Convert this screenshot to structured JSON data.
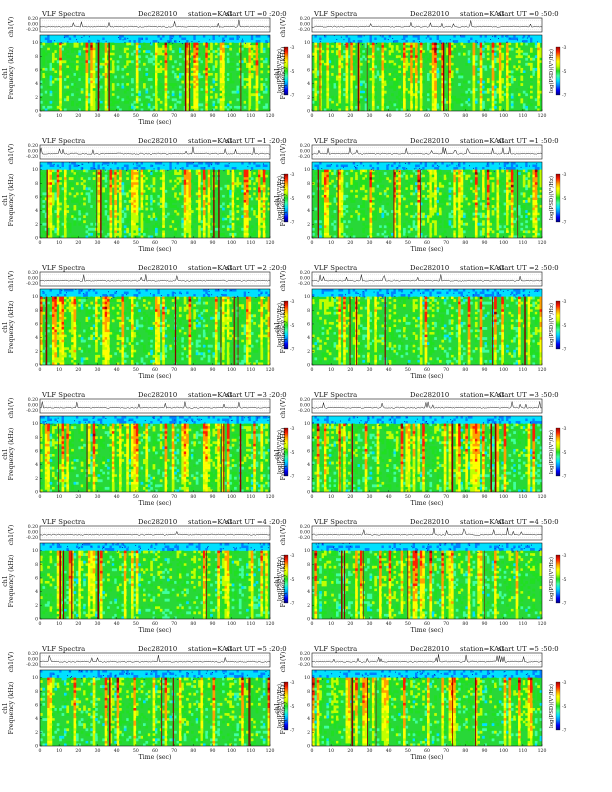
{
  "chart_data": [
    {
      "type": "heatmap",
      "header": {
        "title": "VLF Spectra",
        "date": "Dec282010",
        "station": "station=KAG",
        "start": "start  UT =0 :20:0"
      },
      "amp_axis": {
        "label": "ch1(V)",
        "ticks": [
          "0.20",
          "0.00",
          "-0.20"
        ]
      },
      "spec_axis": {
        "label": "Frequency (kHz)",
        "ticks": [
          "0",
          "2",
          "4",
          "6",
          "8",
          "10"
        ]
      },
      "x_axis": {
        "label": "Time (sec)",
        "ticks": [
          "0",
          "10",
          "20",
          "30",
          "40",
          "50",
          "60",
          "70",
          "80",
          "90",
          "100",
          "110",
          "120"
        ]
      },
      "colorbar": {
        "label": "log(PSD)(V²/Hz)",
        "ticks": [
          "-3",
          "-5",
          "-7"
        ]
      }
    },
    {
      "type": "heatmap",
      "header": {
        "title": "VLF Spectra",
        "date": "Dec282010",
        "station": "station=KAG",
        "start": "start  UT =0 :50:0"
      },
      "amp_axis": {
        "label": "ch1(V)",
        "ticks": [
          "0.20",
          "0.00",
          "-0.20"
        ]
      },
      "spec_axis": {
        "label": "Frequency (kHz)",
        "ticks": [
          "0",
          "2",
          "4",
          "6",
          "8",
          "10"
        ]
      },
      "x_axis": {
        "label": "",
        "ticks": [
          "0",
          "10",
          "20",
          "30",
          "40",
          "50",
          "60",
          "70",
          "80",
          "90",
          "100",
          "110",
          "120"
        ]
      },
      "colorbar": {
        "label": "log(PSD)(V²/Hz)",
        "ticks": [
          "-3",
          "-5",
          "-7"
        ]
      }
    },
    {
      "type": "heatmap",
      "header": {
        "title": "VLF Spectra",
        "date": "Dec282010",
        "station": "station=KAG",
        "start": "start  UT =1 :20:0"
      },
      "amp_axis": {
        "label": "ch1(V)",
        "ticks": [
          "0.20",
          "0.00",
          "-0.20"
        ]
      },
      "spec_axis": {
        "label": "Frequency (kHz)",
        "ticks": [
          "0",
          "2",
          "4",
          "6",
          "8",
          "10"
        ]
      },
      "x_axis": {
        "label": "Time (sec)",
        "ticks": [
          "0",
          "10",
          "20",
          "30",
          "40",
          "50",
          "60",
          "70",
          "80",
          "90",
          "100",
          "110",
          "120"
        ]
      },
      "colorbar": {
        "label": "log(PSD)(V²/Hz)",
        "ticks": [
          "-3",
          "-5",
          "-7"
        ]
      }
    },
    {
      "type": "heatmap",
      "header": {
        "title": "VLF Spectra",
        "date": "Dec282010",
        "station": "station=KAG",
        "start": "start  UT =1 :50:0"
      },
      "amp_axis": {
        "label": "ch1(V)",
        "ticks": [
          "0.20",
          "0.00",
          "-0.20"
        ]
      },
      "spec_axis": {
        "label": "Frequency (kHz)",
        "ticks": [
          "0",
          "2",
          "4",
          "6",
          "8",
          "10"
        ]
      },
      "x_axis": {
        "label": "Time (sec)",
        "ticks": [
          "0",
          "10",
          "20",
          "30",
          "40",
          "50",
          "60",
          "70",
          "80",
          "90",
          "100",
          "110",
          "120"
        ]
      },
      "colorbar": {
        "label": "log(PSD)(V²/Hz)",
        "ticks": [
          "-3",
          "-5",
          "-7"
        ]
      }
    },
    {
      "type": "heatmap",
      "header": {
        "title": "VLF Spectra",
        "date": "Dec282010",
        "station": "station=KAG",
        "start": "start  UT =2 :20:0"
      },
      "amp_axis": {
        "label": "ch1(V)",
        "ticks": [
          "0.20",
          "0.00",
          "-0.20"
        ]
      },
      "spec_axis": {
        "label": "Frequency (kHz)",
        "ticks": [
          "0",
          "2",
          "4",
          "6",
          "8",
          "10"
        ]
      },
      "x_axis": {
        "label": "Time (sec)",
        "ticks": [
          "0",
          "10",
          "20",
          "30",
          "40",
          "50",
          "60",
          "70",
          "80",
          "90",
          "100",
          "110",
          "120"
        ]
      },
      "colorbar": {
        "label": "log(PSD)(V²/Hz)",
        "ticks": [
          "-3",
          "-5",
          "-7"
        ]
      }
    },
    {
      "type": "heatmap",
      "header": {
        "title": "VLF Spectra",
        "date": "Dec282010",
        "station": "station=KAG",
        "start": "start  UT =2 :50:0"
      },
      "amp_axis": {
        "label": "ch1(V)",
        "ticks": [
          "0.20",
          "0.00",
          "-0.20"
        ]
      },
      "spec_axis": {
        "label": "Frequency (kHz)",
        "ticks": [
          "0",
          "2",
          "4",
          "6",
          "8",
          "10"
        ]
      },
      "x_axis": {
        "label": "Time (sec)",
        "ticks": [
          "0",
          "10",
          "20",
          "30",
          "40",
          "50",
          "60",
          "70",
          "80",
          "90",
          "100",
          "110",
          "120"
        ]
      },
      "colorbar": {
        "label": "log(PSD)(V²/Hz)",
        "ticks": [
          "-3",
          "-5",
          "-7"
        ]
      }
    },
    {
      "type": "heatmap",
      "header": {
        "title": "VLF Spectra",
        "date": "Dec282010",
        "station": "station=KAG",
        "start": "start  UT =3 :20:0"
      },
      "amp_axis": {
        "label": "ch1(V)",
        "ticks": [
          "0.20",
          "0.00",
          "-0.20"
        ]
      },
      "spec_axis": {
        "label": "Frequency (kHz)",
        "ticks": [
          "0",
          "2",
          "4",
          "6",
          "8",
          "10"
        ]
      },
      "x_axis": {
        "label": "Time (sec)",
        "ticks": [
          "0",
          "10",
          "20",
          "30",
          "40",
          "50",
          "60",
          "70",
          "80",
          "90",
          "100",
          "110",
          "120"
        ]
      },
      "colorbar": {
        "label": "log(PSD)(V²/Hz)",
        "ticks": [
          "-3",
          "-5",
          "-7"
        ]
      }
    },
    {
      "type": "heatmap",
      "header": {
        "title": "VLF Spectra",
        "date": "Dec282010",
        "station": "station=KAG",
        "start": "start  UT =3 :50:0"
      },
      "amp_axis": {
        "label": "ch1(V)",
        "ticks": [
          "0.20",
          "0.00",
          "-0.20"
        ]
      },
      "spec_axis": {
        "label": "Frequency (kHz)",
        "ticks": [
          "0",
          "2",
          "4",
          "6",
          "8",
          "10"
        ]
      },
      "x_axis": {
        "label": "Time (sec)",
        "ticks": [
          "0",
          "10",
          "20",
          "30",
          "40",
          "50",
          "60",
          "70",
          "80",
          "90",
          "100",
          "110",
          "120"
        ]
      },
      "colorbar": {
        "label": "log(PSD)(V²/Hz)",
        "ticks": [
          "-3",
          "-5",
          "-7"
        ]
      }
    },
    {
      "type": "heatmap",
      "header": {
        "title": "VLF Spectra",
        "date": "Dec282010",
        "station": "station=KAG",
        "start": "start  UT =4 :20:0"
      },
      "amp_axis": {
        "label": "ch1(V)",
        "ticks": [
          "0.20",
          "0.00",
          "-0.20"
        ]
      },
      "spec_axis": {
        "label": "Frequency (kHz)",
        "ticks": [
          "0",
          "2",
          "4",
          "6",
          "8",
          "10"
        ]
      },
      "x_axis": {
        "label": "Time (sec)",
        "ticks": [
          "0",
          "10",
          "20",
          "30",
          "40",
          "50",
          "60",
          "70",
          "80",
          "90",
          "100",
          "110",
          "120"
        ]
      },
      "colorbar": {
        "label": "log(PSD)(V²/Hz)",
        "ticks": [
          "-3",
          "-5",
          "-7"
        ]
      }
    },
    {
      "type": "heatmap",
      "header": {
        "title": "VLF Spectra",
        "date": "Dec282010",
        "station": "station=KAG",
        "start": "start  UT =4 :50:0"
      },
      "amp_axis": {
        "label": "ch1(V)",
        "ticks": [
          "0.20",
          "0.00",
          "-0.20"
        ]
      },
      "spec_axis": {
        "label": "Frequency (kHz)",
        "ticks": [
          "0",
          "2",
          "4",
          "6",
          "8",
          "10"
        ]
      },
      "x_axis": {
        "label": "Time (sec)",
        "ticks": [
          "0",
          "10",
          "20",
          "30",
          "40",
          "50",
          "60",
          "70",
          "80",
          "90",
          "100",
          "110",
          "120"
        ]
      },
      "colorbar": {
        "label": "log(PSD)(V²/Hz)",
        "ticks": [
          "-3",
          "-5",
          "-7"
        ]
      }
    },
    {
      "type": "heatmap",
      "header": {
        "title": "VLF Spectra",
        "date": "Dec282010",
        "station": "station=KAG",
        "start": "start  UT =5 :20:0"
      },
      "amp_axis": {
        "label": "ch1(V)",
        "ticks": [
          "0.20",
          "0.00",
          "-0.20"
        ]
      },
      "spec_axis": {
        "label": "Frequency (kHz)",
        "ticks": [
          "0",
          "2",
          "4",
          "6",
          "8",
          "10"
        ]
      },
      "x_axis": {
        "label": "Time (sec)",
        "ticks": [
          "0",
          "10",
          "20",
          "30",
          "40",
          "50",
          "60",
          "70",
          "80",
          "90",
          "100",
          "110",
          "120"
        ]
      },
      "colorbar": {
        "label": "log(PSD)(V²/Hz)",
        "ticks": [
          "-3",
          "-5",
          "-7"
        ]
      }
    },
    {
      "type": "heatmap",
      "header": {
        "title": "VLF Spectra",
        "date": "Dec282010",
        "station": "station=KAG",
        "start": "start  UT =5 :50:0"
      },
      "amp_axis": {
        "label": "ch1(V)",
        "ticks": [
          "0.20",
          "0.00",
          "-0.20"
        ]
      },
      "spec_axis": {
        "label": "Frequency (kHz)",
        "ticks": [
          "0",
          "2",
          "4",
          "6",
          "8",
          "10"
        ]
      },
      "x_axis": {
        "label": "Time (sec)",
        "ticks": [
          "0",
          "10",
          "20",
          "30",
          "40",
          "50",
          "60",
          "70",
          "80",
          "90",
          "100",
          "110",
          "120"
        ]
      },
      "colorbar": {
        "label": "log(PSD)(V²/Hz)",
        "ticks": [
          "-3",
          "-5",
          "-7"
        ]
      }
    }
  ],
  "colors": {
    "spectrogram_scale": [
      "#000080",
      "#0000ff",
      "#0080ff",
      "#00e0ff",
      "#40ffa0",
      "#20e020",
      "#c0ff00",
      "#ffff00",
      "#ffa000",
      "#ff2000",
      "#a00000"
    ],
    "background_fill": "#28d838",
    "top_band": "#10d8e8",
    "frame": "#111111"
  }
}
